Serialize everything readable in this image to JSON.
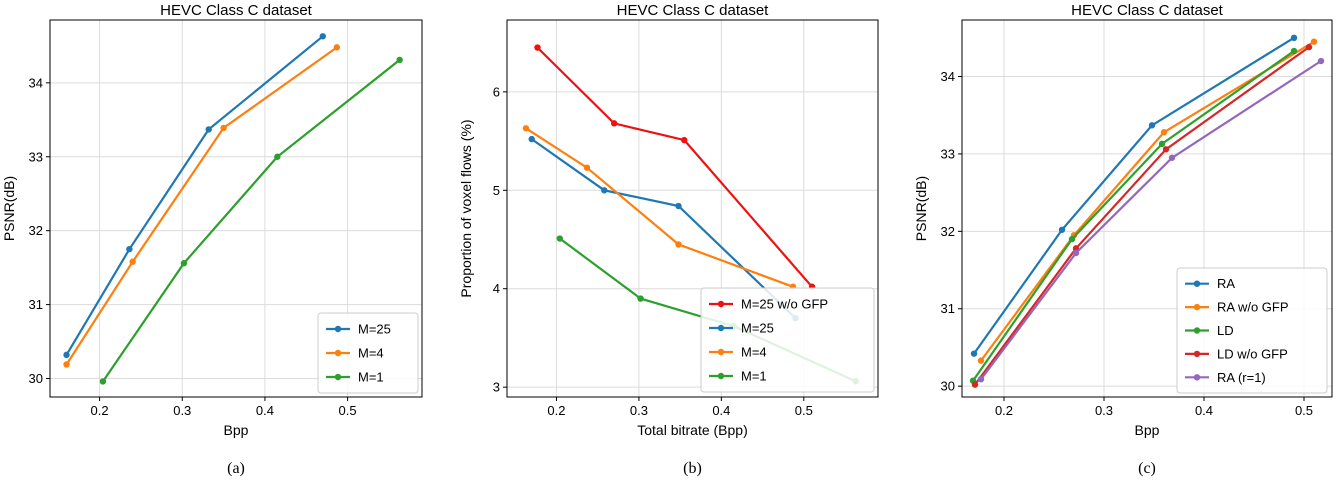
{
  "colors": {
    "blue": "#1f77b4",
    "orange": "#ff7f0e",
    "green": "#2ca02c",
    "red": "#d62728",
    "purple": "#9467bd",
    "bright_red": "#ee1111"
  },
  "chart_data": [
    {
      "type": "line",
      "title": "HEVC Class C dataset",
      "xlabel": "Bpp",
      "ylabel": "PSNR(dB)",
      "caption": "(a)",
      "xlim": [
        0.14,
        0.59
      ],
      "ylim": [
        29.75,
        34.85
      ],
      "xticks": [
        0.2,
        0.3,
        0.4,
        0.5
      ],
      "yticks": [
        30,
        31,
        32,
        33,
        34
      ],
      "grid": true,
      "legend_position": "lower right",
      "series": [
        {
          "name": "M=25",
          "color": "#1f77b4",
          "x": [
            0.16,
            0.236,
            0.332,
            0.47
          ],
          "y": [
            30.32,
            31.75,
            33.37,
            34.63
          ]
        },
        {
          "name": "M=4",
          "color": "#ff7f0e",
          "x": [
            0.16,
            0.24,
            0.35,
            0.487
          ],
          "y": [
            30.19,
            31.58,
            33.39,
            34.48
          ]
        },
        {
          "name": "M=1",
          "color": "#2ca02c",
          "x": [
            0.204,
            0.302,
            0.415,
            0.563
          ],
          "y": [
            29.96,
            31.56,
            33.0,
            34.31
          ]
        }
      ]
    },
    {
      "type": "line",
      "title": "HEVC Class C dataset",
      "xlabel": "Total bitrate (Bpp)",
      "ylabel": "Proportion of voxel flows (%)",
      "caption": "(b)",
      "xlim": [
        0.14,
        0.59
      ],
      "ylim": [
        2.9,
        6.73
      ],
      "xticks": [
        0.2,
        0.3,
        0.4,
        0.5
      ],
      "yticks": [
        3,
        4,
        5,
        6
      ],
      "grid": true,
      "legend_position": "lower right",
      "series": [
        {
          "name": "M=25 w/o GFP",
          "color": "#ee1111",
          "x": [
            0.177,
            0.27,
            0.355,
            0.51
          ],
          "y": [
            6.45,
            5.68,
            5.51,
            4.02
          ]
        },
        {
          "name": "M=25",
          "color": "#1f77b4",
          "x": [
            0.17,
            0.258,
            0.348,
            0.49
          ],
          "y": [
            5.52,
            5.0,
            4.84,
            3.7
          ]
        },
        {
          "name": "M=4",
          "color": "#ff7f0e",
          "x": [
            0.163,
            0.237,
            0.348,
            0.487
          ],
          "y": [
            5.63,
            5.23,
            4.45,
            4.02
          ]
        },
        {
          "name": "M=1",
          "color": "#2ca02c",
          "x": [
            0.204,
            0.302,
            0.415,
            0.563
          ],
          "y": [
            4.51,
            3.9,
            3.62,
            3.06
          ]
        }
      ]
    },
    {
      "type": "line",
      "title": "HEVC Class C dataset",
      "xlabel": "Bpp",
      "ylabel": "PSNR(dB)",
      "caption": "(c)",
      "xlim": [
        0.158,
        0.528
      ],
      "ylim": [
        29.86,
        34.73
      ],
      "xticks": [
        0.2,
        0.3,
        0.4,
        0.5
      ],
      "yticks": [
        30,
        31,
        32,
        33,
        34
      ],
      "grid": true,
      "legend_position": "lower right",
      "series": [
        {
          "name": "RA",
          "color": "#1f77b4",
          "x": [
            0.17,
            0.258,
            0.348,
            0.49
          ],
          "y": [
            30.42,
            32.02,
            33.37,
            34.5
          ]
        },
        {
          "name": "RA w/o GFP",
          "color": "#ff7f0e",
          "x": [
            0.177,
            0.27,
            0.36,
            0.51
          ],
          "y": [
            30.33,
            31.95,
            33.28,
            34.45
          ]
        },
        {
          "name": "LD",
          "color": "#2ca02c",
          "x": [
            0.169,
            0.268,
            0.358,
            0.49
          ],
          "y": [
            30.07,
            31.9,
            33.13,
            34.33
          ]
        },
        {
          "name": "LD w/o GFP",
          "color": "#d62728",
          "x": [
            0.171,
            0.272,
            0.362,
            0.505
          ],
          "y": [
            30.02,
            31.78,
            33.06,
            34.38
          ]
        },
        {
          "name": "RA (r=1)",
          "color": "#9467bd",
          "x": [
            0.177,
            0.272,
            0.368,
            0.517
          ],
          "y": [
            30.09,
            31.72,
            32.95,
            34.2
          ]
        }
      ]
    }
  ]
}
